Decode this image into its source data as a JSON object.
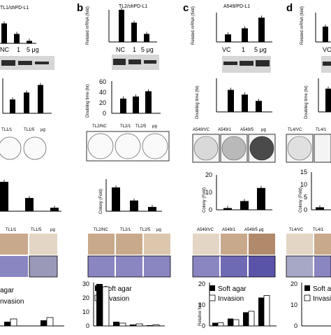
{
  "panels": [
    {
      "id": "a",
      "letter": "",
      "title": "TL1/shPD-L1",
      "mrna": {
        "ticks": [],
        "ylabel": "",
        "bars": [
          0.95,
          0.45,
          0.12
        ]
      },
      "mrna_xticks": [
        "NC",
        "1",
        "5 μg"
      ],
      "doubling": {
        "ylabel": "",
        "ticks": [],
        "bars": [
          22,
          33,
          45
        ]
      },
      "colony_labels": [
        "TL1/1",
        "TL1/5",
        "μg"
      ],
      "colony": {
        "ylabel": "",
        "ticks": [],
        "bars": [
          1.0,
          0.45,
          0.12
        ]
      },
      "photo_labels": [
        "TL1/1",
        "TL1/5",
        "μg"
      ],
      "bottom_legend": [
        "agar",
        "nvasion"
      ]
    },
    {
      "id": "b",
      "letter": "b",
      "title": "TL2/shPD-L1",
      "mrna": {
        "ylabel": "Related mRNA (fold)",
        "ticks": [],
        "bars": [
          1.0,
          0.6,
          0.25
        ]
      },
      "mrna_xticks": [
        "NC",
        "1",
        "5 μg"
      ],
      "doubling": {
        "ylabel": "Doubling time (hr)",
        "ticks": [
          "0",
          "20",
          "40",
          "60"
        ],
        "bars": [
          28,
          32,
          42
        ]
      },
      "colony_labels": [
        "TL2/NC",
        "TL2/1",
        "TL2/5",
        "μg"
      ],
      "colony": {
        "ylabel": "Colony (Fold)",
        "ticks": [],
        "bars": [
          1.0,
          0.45,
          0.18
        ]
      },
      "photo_labels": [
        "TL2/NC",
        "TL2/1",
        "TL2/5",
        "μg"
      ],
      "bottom_legend": [
        "Soft agar",
        "Invasion"
      ]
    },
    {
      "id": "c",
      "letter": "c",
      "title": "A549/PD-L1",
      "mrna": {
        "ylabel": "Related mRNA (fold)",
        "ticks": [],
        "bars": [
          1.0,
          1.8,
          3.2
        ]
      },
      "mrna_xticks": [
        "VC",
        "1",
        "5 μg"
      ],
      "doubling": {
        "ylabel": "Doubling time (hr)",
        "ticks": [],
        "bars": [
          28,
          22,
          14
        ]
      },
      "colony_labels": [
        "A549/VC",
        "A549/1",
        "A549/5",
        "μg"
      ],
      "colony": {
        "ylabel": "Colony (Fold)",
        "ticks": [
          "0",
          "10",
          "20"
        ],
        "bars": [
          1.0,
          5.0,
          12.5
        ]
      },
      "photo_labels": [
        "A549/VC",
        "A549/1",
        "A549/5 μg"
      ],
      "bottom_legend": [
        "Soft agar",
        "Invasion"
      ],
      "bottom_ylabel": "Relative fold"
    },
    {
      "id": "d",
      "letter": "d",
      "title": "",
      "mrna": {
        "ylabel": "Related mRNA (fold)",
        "ticks": [],
        "bars": [
          1.0
        ]
      },
      "mrna_xticks": [
        "VC"
      ],
      "doubling": {
        "ylabel": "Doubling time (hr)",
        "ticks": [],
        "bars": [
          35
        ]
      },
      "colony_labels": [
        "TL4/VC",
        "TL4/1"
      ],
      "colony": {
        "ylabel": "Colony (Fold)",
        "ticks": [
          "0",
          "5",
          "10",
          "15"
        ],
        "bars": [
          1.0
        ]
      },
      "photo_labels": [
        "TL4/VC",
        "TL4/1"
      ],
      "bottom_legend": [
        "Soft ag",
        "Invasi"
      ]
    }
  ],
  "bottom_b": {
    "ticks": [
      "0",
      "10",
      "20",
      "30"
    ],
    "soft": [
      30,
      3,
      1,
      0.5
    ],
    "inv": [
      28,
      2,
      1.5,
      0.8
    ]
  },
  "bottom_c": {
    "ticks": [
      "0",
      "10",
      "20"
    ],
    "soft": [
      1.5,
      3.5,
      6.5,
      13.5
    ],
    "inv": [
      1.5,
      3.0,
      7.0,
      14.5
    ]
  },
  "bottom_d": {
    "ticks": [
      "0",
      "10",
      "20"
    ]
  },
  "bottom_a": {
    "soft": [
      3,
      4
    ],
    "inv": [
      5,
      6
    ]
  }
}
